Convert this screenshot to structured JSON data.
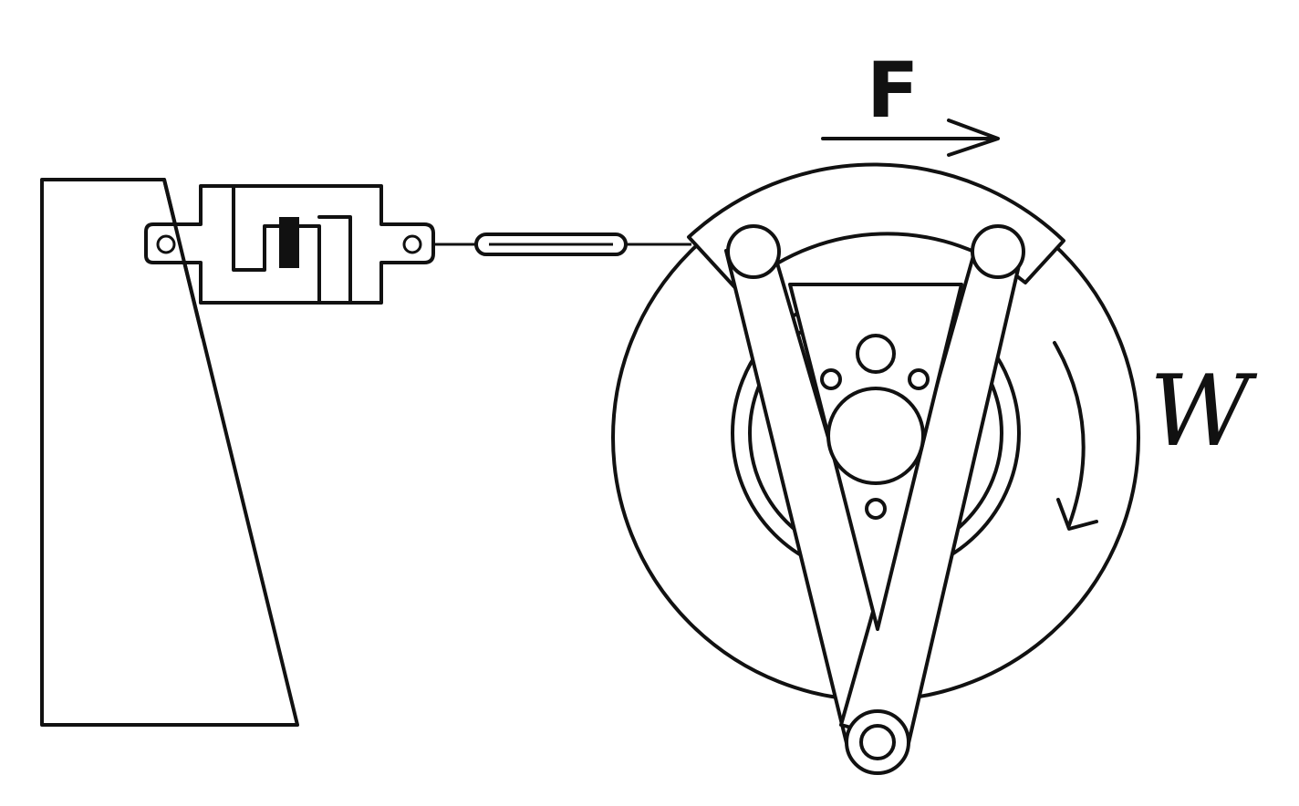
{
  "labels": {
    "force": "F",
    "angular_velocity": "W"
  },
  "colors": {
    "line": "#111111",
    "background": "#ffffff"
  }
}
